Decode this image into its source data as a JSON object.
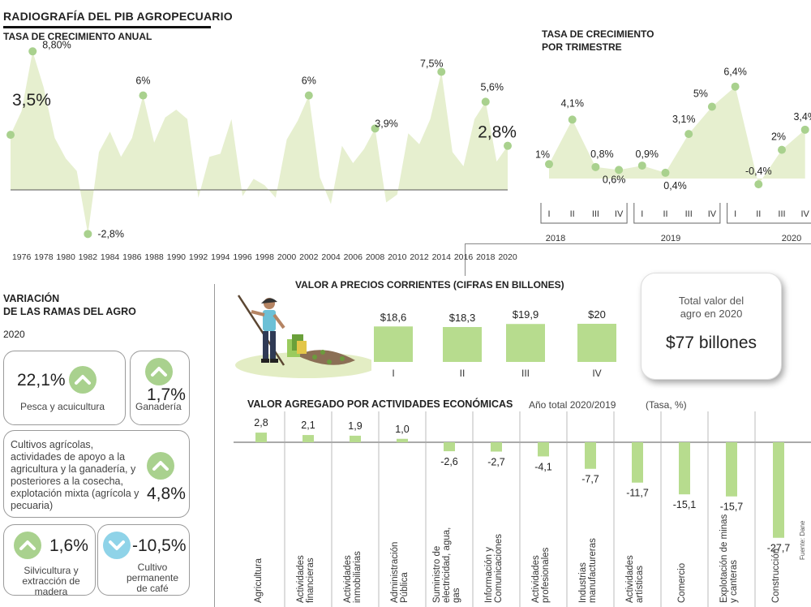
{
  "main_title": "RADIOGRAFÍA DEL PIB AGROPECUARIO",
  "annual": {
    "title": "TASA DE CRECIMIENTO ANUAL",
    "highlight_labels": [
      {
        "year": 1975,
        "text": "3,5%"
      },
      {
        "year": 1977,
        "text": "8,80%"
      },
      {
        "year": 1982,
        "text": "-2,8%"
      },
      {
        "year": 1987,
        "text": "6%"
      },
      {
        "year": 2002,
        "text": "6%"
      },
      {
        "year": 2008,
        "text": "3,9%"
      },
      {
        "year": 2014,
        "text": "7,5%"
      },
      {
        "year": 2018,
        "text": "5,6%"
      },
      {
        "year": 2020,
        "text": "2,8%"
      }
    ],
    "tick_labels": [
      "1976",
      "1978",
      "1980",
      "1982",
      "1984",
      "1986",
      "1988",
      "1990",
      "1992",
      "1994",
      "1996",
      "1998",
      "2000",
      "2002",
      "2004",
      "2006",
      "2008",
      "2010",
      "2012",
      "2014",
      "2016",
      "2018",
      "2020"
    ]
  },
  "quarterly": {
    "title_line1": "TASA DE CRECIMIENTO",
    "title_line2": "POR TRIMESTRE",
    "quarter_labels": [
      "I",
      "II",
      "III",
      "IV",
      "I",
      "II",
      "III",
      "IV",
      "I",
      "II",
      "III",
      "IV"
    ],
    "year_labels": [
      "2018",
      "2019",
      "2020"
    ]
  },
  "ramas": {
    "title_line1": "VARIACIÓN",
    "title_line2": "DE LAS RAMAS DEL AGRO",
    "year": "2020",
    "items": [
      {
        "value": "22,1%",
        "label": "Pesca y acuicultura",
        "direction": "up"
      },
      {
        "value": "1,7%",
        "label": "Ganadería",
        "direction": "up"
      },
      {
        "value": "4,8%",
        "label": "Cultivos agrícolas, actividades de apoyo a la agricultura y la ganadería, y posteriores a la cosecha, explotación mixta (agrícola y pecuaria)",
        "direction": "up"
      },
      {
        "value": "1,6%",
        "label": "Silvicultura y extracción de madera",
        "direction": "up"
      },
      {
        "value": "-10,5%",
        "label": "Cultivo permanente de café",
        "direction": "down"
      }
    ],
    "up_color": "#a9d18e",
    "down_color": "#8fd3e8"
  },
  "valor": {
    "title": "VALOR A PRECIOS CORRIENTES (CIFRAS EN BILLONES)"
  },
  "total": {
    "line1": "Total valor del",
    "line2": "agro en 2020",
    "value": "$77 billones"
  },
  "agregado": {
    "title": "VALOR AGREGADO POR ACTIVIDADES ECONÓMICAS",
    "subtitle": "Año total 2020/2019",
    "unit": "(Tasa, %)",
    "source": "Fuente: Dane"
  },
  "colors": {
    "area_fill": "#e6efcf",
    "dot": "#a9d18e",
    "bar": "#b7dc8e"
  },
  "chart_data": [
    {
      "type": "area",
      "title": "TASA DE CRECIMIENTO ANUAL",
      "x": [
        1975,
        1976,
        1977,
        1978,
        1979,
        1980,
        1981,
        1982,
        1983,
        1984,
        1985,
        1986,
        1987,
        1988,
        1989,
        1990,
        1991,
        1992,
        1993,
        1994,
        1995,
        1996,
        1997,
        1998,
        1999,
        2000,
        2001,
        2002,
        2003,
        2004,
        2005,
        2006,
        2007,
        2008,
        2009,
        2010,
        2011,
        2012,
        2013,
        2014,
        2015,
        2016,
        2017,
        2018,
        2019,
        2020
      ],
      "values": [
        3.5,
        5.0,
        8.8,
        6.5,
        3.3,
        2.0,
        1.2,
        -2.8,
        2.4,
        3.7,
        2.1,
        3.3,
        6.0,
        3.0,
        4.6,
        5.1,
        4.5,
        -0.5,
        2.1,
        2.3,
        4.5,
        -0.4,
        0.7,
        0.3,
        -0.5,
        3.2,
        4.4,
        6.0,
        0.8,
        -0.9,
        2.8,
        1.7,
        2.6,
        3.9,
        -0.8,
        -0.3,
        3.6,
        2.9,
        4.5,
        7.5,
        2.4,
        1.5,
        4.5,
        5.6,
        1.8,
        2.8
      ],
      "ylim": [
        -3,
        9
      ]
    },
    {
      "type": "area",
      "title": "TASA DE CRECIMIENTO POR TRIMESTRE",
      "categories": [
        "2018-I",
        "2018-II",
        "2018-III",
        "2018-IV",
        "2019-I",
        "2019-II",
        "2019-III",
        "2019-IV",
        "2020-I",
        "2020-II",
        "2020-III",
        "2020-IV"
      ],
      "values": [
        1.0,
        4.1,
        0.8,
        0.6,
        0.9,
        0.4,
        3.1,
        5.0,
        6.4,
        -0.4,
        2.0,
        3.4
      ],
      "labels": [
        "1%",
        "4,1%",
        "0,8%",
        "0,6%",
        "0,9%",
        "0,4%",
        "3,1%",
        "5%",
        "6,4%",
        "-0,4%",
        "2%",
        "3,4%"
      ]
    },
    {
      "type": "bar",
      "title": "VALOR A PRECIOS CORRIENTES (CIFRAS EN BILLONES)",
      "categories": [
        "I",
        "II",
        "III",
        "IV"
      ],
      "values": [
        18.6,
        18.3,
        19.9,
        20
      ],
      "labels": [
        "$18,6",
        "$18,3",
        "$19,9",
        "$20"
      ]
    },
    {
      "type": "bar",
      "title": "VALOR AGREGADO POR ACTIVIDADES ECONÓMICAS",
      "categories": [
        "Agricultura",
        "Actividades financieras",
        "Actividades inmobiliarias",
        "Administración Pública",
        "Suministro de electricidad, agua, gas",
        "Información y Comunicaciones",
        "Actividades profesionales",
        "Industrias manufactureras",
        "Actividades artísticas",
        "Comercio",
        "Explotación de minas y canteras",
        "Construcción"
      ],
      "values": [
        2.8,
        2.1,
        1.9,
        1.0,
        -2.6,
        -2.7,
        -4.1,
        -7.7,
        -11.7,
        -15.1,
        -15.7,
        -27.7
      ],
      "labels": [
        "2,8",
        "2,1",
        "1,9",
        "1,0",
        "-2,6",
        "-2,7",
        "-4,1",
        "-7,7",
        "-11,7",
        "-15,1",
        "-15,7",
        "-27,7"
      ]
    }
  ]
}
